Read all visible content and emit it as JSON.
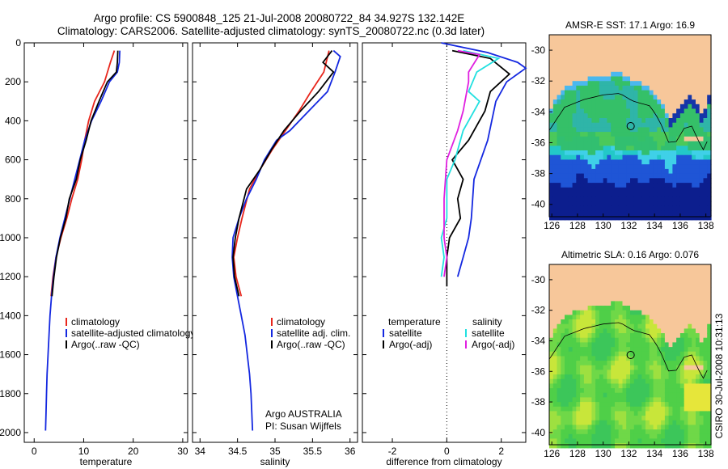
{
  "title_line1": "Argo profile: CS 5900848_125 21-Jul-2008 20080722_84 34.927S 132.142E",
  "title_line2": "Climatology: CARS2006. Satellite-adjusted climatology: synTS_20080722.nc (0.3d later)",
  "side_label": "CSIRO 30-Jul-2008 10:31:13",
  "colors": {
    "climatology": "#e8261c",
    "satellite": "#1428e0",
    "argo": "#000000",
    "satellite_salinity": "#22e0e0",
    "argo_salinity": "#e020e0",
    "land": "#f7c79a"
  },
  "chart_data": [
    {
      "type": "line",
      "xlabel": "temperature",
      "ylabel": "",
      "xlim": [
        -2,
        31
      ],
      "ylim": [
        2050,
        0
      ],
      "xticks": [
        0,
        10,
        20,
        30
      ],
      "yticks": [
        0,
        200,
        400,
        600,
        800,
        1000,
        1200,
        1400,
        1600,
        1800,
        2000
      ],
      "legend": {
        "placement": "lower-right",
        "entries": [
          "climatology",
          "satellite-adjusted climatology",
          "Argo(..raw -QC)"
        ]
      },
      "series": [
        {
          "name": "climatology",
          "color": "climatology",
          "points": [
            [
              16.2,
              40
            ],
            [
              15.4,
              100
            ],
            [
              14.2,
              200
            ],
            [
              12.2,
              300
            ],
            [
              11,
              400
            ],
            [
              10.2,
              500
            ],
            [
              9.6,
              600
            ],
            [
              8.8,
              700
            ],
            [
              7.6,
              800
            ],
            [
              6.6,
              900
            ],
            [
              5.4,
              1000
            ],
            [
              4.4,
              1100
            ],
            [
              3.8,
              1200
            ],
            [
              3.4,
              1300
            ]
          ]
        },
        {
          "name": "satellite-adjusted climatology",
          "color": "satellite",
          "points": [
            [
              17.3,
              40
            ],
            [
              17.2,
              100
            ],
            [
              16.8,
              150
            ],
            [
              15.2,
              200
            ],
            [
              13.5,
              300
            ],
            [
              11.6,
              400
            ],
            [
              10.2,
              500
            ],
            [
              9.2,
              600
            ],
            [
              8.2,
              700
            ],
            [
              7.2,
              800
            ],
            [
              6.2,
              900
            ],
            [
              5.2,
              1000
            ],
            [
              4.4,
              1100
            ],
            [
              3.9,
              1200
            ],
            [
              3.5,
              1300
            ],
            [
              3.2,
              1400
            ],
            [
              3,
              1500
            ],
            [
              2.8,
              1600
            ],
            [
              2.6,
              1700
            ],
            [
              2.5,
              1800
            ],
            [
              2.4,
              1900
            ],
            [
              2.3,
              1990
            ]
          ]
        },
        {
          "name": "Argo(..raw -QC)",
          "color": "argo",
          "points": [
            [
              16.9,
              40
            ],
            [
              16.8,
              100
            ],
            [
              16.6,
              150
            ],
            [
              14.8,
              200
            ],
            [
              13.1,
              300
            ],
            [
              11.5,
              400
            ],
            [
              10.5,
              500
            ],
            [
              9.3,
              600
            ],
            [
              8.5,
              700
            ],
            [
              7.1,
              800
            ],
            [
              6.4,
              900
            ],
            [
              5.3,
              1000
            ],
            [
              4.5,
              1100
            ],
            [
              4,
              1200
            ],
            [
              3.6,
              1300
            ]
          ]
        }
      ],
      "annotation": ""
    },
    {
      "type": "line",
      "xlabel": "salinity",
      "ylabel": "",
      "xlim": [
        33.9,
        36.1
      ],
      "ylim": [
        2050,
        0
      ],
      "xticks": [
        34,
        34.5,
        35,
        35.5,
        36
      ],
      "yticks": [
        0,
        200,
        400,
        600,
        800,
        1000,
        1200,
        1400,
        1600,
        1800,
        2000
      ],
      "legend": {
        "placement": "lower-right",
        "entries": [
          "climatology",
          "satellite adj. clim.",
          "Argo(..raw -QC)"
        ]
      },
      "series": [
        {
          "name": "climatology",
          "color": "climatology",
          "points": [
            [
              35.72,
              40
            ],
            [
              35.65,
              150
            ],
            [
              35.48,
              250
            ],
            [
              35.32,
              350
            ],
            [
              35.14,
              450
            ],
            [
              34.96,
              550
            ],
            [
              34.8,
              650
            ],
            [
              34.66,
              750
            ],
            [
              34.56,
              900
            ],
            [
              34.5,
              1000
            ],
            [
              34.45,
              1100
            ],
            [
              34.48,
              1200
            ],
            [
              34.55,
              1300
            ]
          ]
        },
        {
          "name": "satellite adj. clim.",
          "color": "satellite",
          "points": [
            [
              35.78,
              40
            ],
            [
              35.87,
              70
            ],
            [
              35.8,
              150
            ],
            [
              35.7,
              250
            ],
            [
              35.45,
              350
            ],
            [
              35.2,
              450
            ],
            [
              35.02,
              500
            ],
            [
              34.86,
              600
            ],
            [
              34.75,
              700
            ],
            [
              34.62,
              800
            ],
            [
              34.52,
              900
            ],
            [
              34.44,
              1000
            ],
            [
              34.43,
              1100
            ],
            [
              34.45,
              1200
            ],
            [
              34.5,
              1300
            ],
            [
              34.55,
              1400
            ],
            [
              34.6,
              1500
            ],
            [
              34.63,
              1600
            ],
            [
              34.66,
              1700
            ],
            [
              34.68,
              1800
            ],
            [
              34.69,
              1900
            ],
            [
              34.7,
              1990
            ]
          ]
        },
        {
          "name": "Argo(..raw -QC)",
          "color": "argo",
          "points": [
            [
              35.76,
              40
            ],
            [
              35.64,
              100
            ],
            [
              35.78,
              150
            ],
            [
              35.58,
              250
            ],
            [
              35.34,
              350
            ],
            [
              35.12,
              450
            ],
            [
              34.95,
              550
            ],
            [
              34.8,
              650
            ],
            [
              34.62,
              750
            ],
            [
              34.52,
              900
            ],
            [
              34.47,
              1000
            ],
            [
              34.44,
              1100
            ],
            [
              34.46,
              1200
            ],
            [
              34.52,
              1300
            ]
          ]
        }
      ],
      "annotation": "Argo AUSTRALIA",
      "annotation2": "PI: Susan Wijffels"
    },
    {
      "type": "line",
      "xlabel": "difference from climatology",
      "ylabel": "",
      "xlim": [
        -3.1,
        2.9
      ],
      "ylim": [
        2050,
        0
      ],
      "xticks": [
        -2,
        0,
        2
      ],
      "yticks": [
        0,
        200,
        400,
        600,
        800,
        1000,
        1200,
        1400,
        1600,
        1800,
        2000
      ],
      "legend": {
        "placement": "lower",
        "temperature_title": "temperature",
        "salinity_title": "salinity",
        "entries": [
          "satellite",
          "Argo(-adj)",
          "satellite",
          "Argo(-adj)"
        ]
      },
      "series": [
        {
          "name": "temperature satellite",
          "color": "satellite",
          "points": [
            [
              -0.2,
              0
            ],
            [
              1.5,
              50
            ],
            [
              2.6,
              100
            ],
            [
              2.9,
              130
            ],
            [
              2.2,
              200
            ],
            [
              1.8,
              300
            ],
            [
              1.5,
              500
            ],
            [
              1,
              700
            ],
            [
              0.9,
              900
            ],
            [
              0.8,
              1000
            ],
            [
              0.6,
              1100
            ],
            [
              0.4,
              1200
            ]
          ]
        },
        {
          "name": "temperature Argo(-adj)",
          "color": "argo",
          "points": [
            [
              0.2,
              40
            ],
            [
              1.6,
              80
            ],
            [
              2.3,
              160
            ],
            [
              1.6,
              250
            ],
            [
              1.4,
              350
            ],
            [
              0.8,
              500
            ],
            [
              0.2,
              600
            ],
            [
              0.6,
              700
            ],
            [
              0.4,
              800
            ],
            [
              0.5,
              900
            ],
            [
              0.1,
              1000
            ],
            [
              0,
              1100
            ],
            [
              0,
              1200
            ],
            [
              0,
              1250
            ]
          ]
        },
        {
          "name": "salinity satellite",
          "color": "satellite_salinity",
          "points": [
            [
              0.6,
              40
            ],
            [
              1.9,
              80
            ],
            [
              1.1,
              150
            ],
            [
              0.8,
              250
            ],
            [
              1.2,
              300
            ],
            [
              0.6,
              450
            ],
            [
              0.3,
              600
            ],
            [
              0,
              700
            ],
            [
              0,
              800
            ],
            [
              0,
              900
            ],
            [
              -0.2,
              1000
            ],
            [
              -0.1,
              1100
            ],
            [
              -0.2,
              1200
            ]
          ]
        },
        {
          "name": "salinity Argo(-adj)",
          "color": "argo_salinity",
          "points": [
            [
              0.4,
              40
            ],
            [
              1.2,
              60
            ],
            [
              0.8,
              150
            ],
            [
              0.8,
              200
            ],
            [
              0.6,
              350
            ],
            [
              0.4,
              450
            ],
            [
              0,
              600
            ],
            [
              -0.1,
              800
            ],
            [
              -0.1,
              900
            ],
            [
              -0.1,
              1000
            ],
            [
              0,
              1100
            ],
            [
              -0.1,
              1200
            ]
          ]
        }
      ],
      "annotation": ""
    }
  ],
  "maps": [
    {
      "title": "AMSR-E SST: 17.1 Argo: 16.9",
      "xticks": [
        "126",
        "128",
        "130",
        "132",
        "134",
        "136",
        "138"
      ],
      "yticks": [
        "-30",
        "-32",
        "-34",
        "-36",
        "-38",
        "-40"
      ],
      "palette": "sst"
    },
    {
      "title": "Altimetric SLA: 0.16 Argo: 0.076",
      "xticks": [
        "126",
        "128",
        "130",
        "132",
        "134",
        "136",
        "138"
      ],
      "yticks": [
        "-30",
        "-32",
        "-34",
        "-36",
        "-38",
        "-40"
      ],
      "palette": "sla"
    }
  ]
}
